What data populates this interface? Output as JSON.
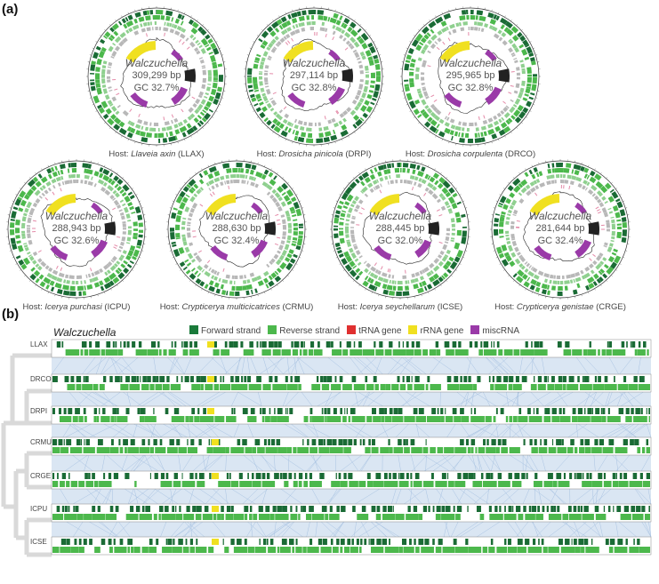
{
  "panel_a_label": "(a)",
  "panel_b_label": "(b)",
  "center_genus": "Walczuchella",
  "genomes": [
    {
      "host_prefix": "Host: ",
      "host_species": "Llaveia axin",
      "host_code": "(LLAX)",
      "size": "309,299 bp",
      "gc": "GC 32.7%"
    },
    {
      "host_prefix": "Host: ",
      "host_species": "Drosicha pinicola",
      "host_code": "(DRPI)",
      "size": "297,114 bp",
      "gc": "GC 32.8%"
    },
    {
      "host_prefix": "Host: ",
      "host_species": "Drosicha corpulenta",
      "host_code": "(DRCO)",
      "size": "295,965 bp",
      "gc": "GC 32.8%"
    },
    {
      "host_prefix": "Host: ",
      "host_species": "Icerya purchasi",
      "host_code": "(ICPU)",
      "size": "288,943 bp",
      "gc": "GC 32.6%"
    },
    {
      "host_prefix": "Host: ",
      "host_species": "Crypticerya multicicatrices",
      "host_code": "(CRMU)",
      "size": "288,630 bp",
      "gc": "GC 32.4%"
    },
    {
      "host_prefix": "Host: ",
      "host_species": "Icerya seychellarum",
      "host_code": "(ICSE)",
      "size": "288,445 bp",
      "gc": "GC 32.0%"
    },
    {
      "host_prefix": "Host: ",
      "host_species": "Crypticerya genistae",
      "host_code": "(CRGE)",
      "size": "281,644 bp",
      "gc": "GC 32.4%"
    }
  ],
  "panel_b": {
    "title": "Walczuchella",
    "legend": [
      {
        "label": "Forward strand",
        "color": "#1a7a3a"
      },
      {
        "label": "Reverse strand",
        "color": "#4cb84c"
      },
      {
        "label": "tRNA gene",
        "color": "#e03030"
      },
      {
        "label": "rRNA gene",
        "color": "#f0e020"
      },
      {
        "label": "miscRNA",
        "color": "#9a3aa8"
      }
    ],
    "tracks": [
      "LLAX",
      "DRCO",
      "DRPI",
      "CRMU",
      "CRGE",
      "ICPU",
      "ICSE"
    ]
  },
  "colors": {
    "forward": "#1a6b35",
    "reverse": "#4cb84c",
    "light_green": "#8fd08f",
    "gray": "#b8b8b8",
    "link": "#b8cfe8",
    "tree": "#d9d9d9",
    "rrna": "#f0e020",
    "misc": "#9a3aa8",
    "gc": "#222222"
  }
}
